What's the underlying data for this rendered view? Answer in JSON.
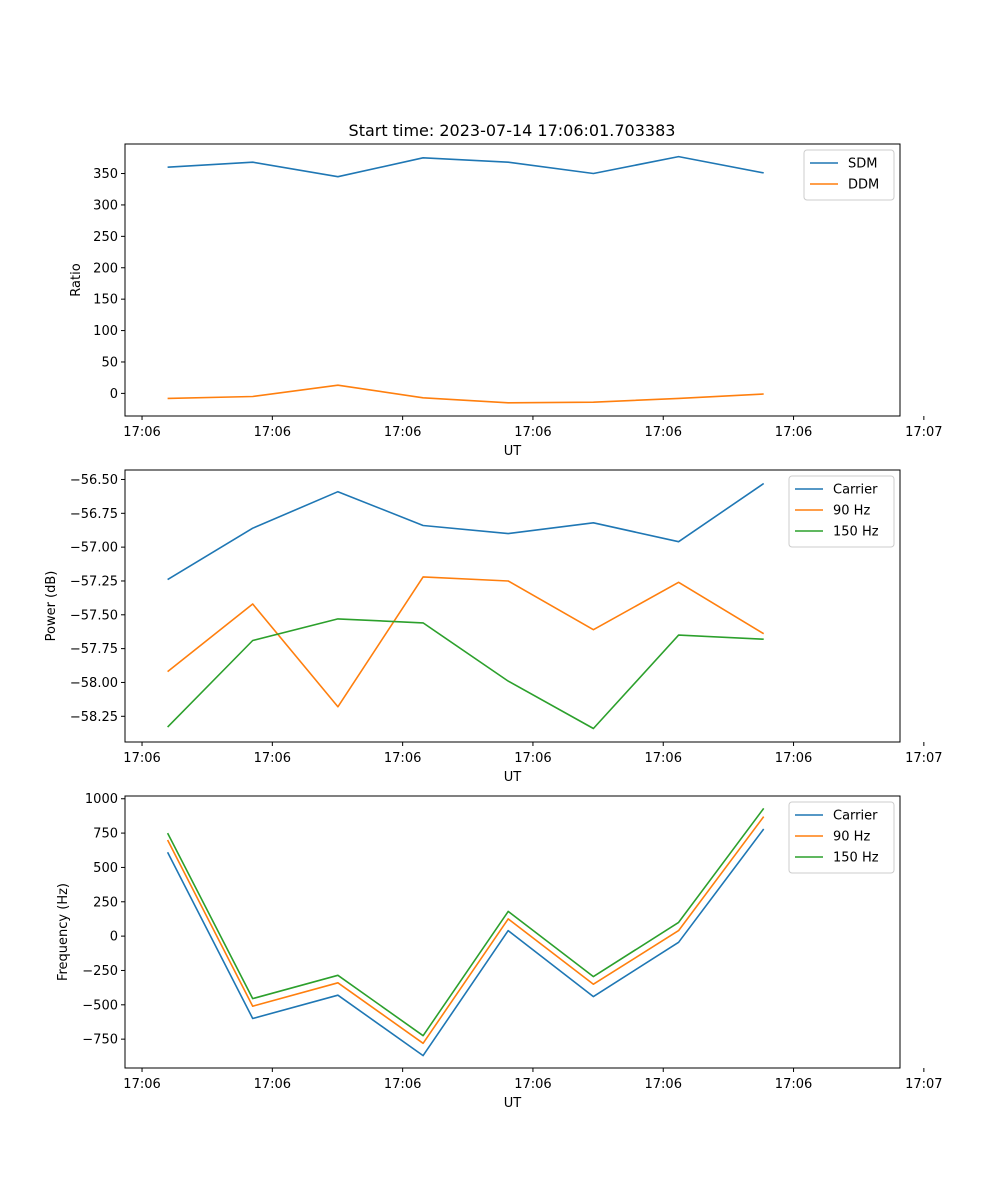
{
  "title": "Start time: 2023-07-14 17:06:01.703383",
  "colors": {
    "blue": "#1f77b4",
    "orange": "#ff7f0e",
    "green": "#2ca02c"
  },
  "chart_data": [
    {
      "type": "line",
      "xlabel": "UT",
      "ylabel": "Ratio",
      "x_ticks": [
        "17:06",
        "17:06",
        "17:06",
        "17:06",
        "17:06",
        "17:06",
        "17:07"
      ],
      "xlim": [
        -0.5,
        8.6
      ],
      "ylim": [
        -36,
        397
      ],
      "y_ticks": [
        0,
        50,
        100,
        150,
        200,
        250,
        300,
        350
      ],
      "y_tick_labels": [
        "0",
        "50",
        "100",
        "150",
        "200",
        "250",
        "300",
        "350"
      ],
      "legend_position": "top-right",
      "series": [
        {
          "name": "SDM",
          "color": "#1f77b4",
          "x": [
            0,
            1,
            2,
            3,
            4,
            5,
            6,
            7
          ],
          "values": [
            360,
            368,
            345,
            375,
            368,
            350,
            377,
            351
          ]
        },
        {
          "name": "DDM",
          "color": "#ff7f0e",
          "x": [
            0,
            1,
            2,
            3,
            4,
            5,
            6,
            7
          ],
          "values": [
            -8,
            -5,
            13,
            -7,
            -15,
            -14,
            -8,
            -1
          ]
        }
      ]
    },
    {
      "type": "line",
      "xlabel": "UT",
      "ylabel": "Power (dB)",
      "x_ticks": [
        "17:06",
        "17:06",
        "17:06",
        "17:06",
        "17:06",
        "17:06",
        "17:07"
      ],
      "xlim": [
        -0.5,
        8.6
      ],
      "ylim": [
        -58.44,
        -56.43
      ],
      "y_ticks": [
        -58.25,
        -58.0,
        -57.75,
        -57.5,
        -57.25,
        -57.0,
        -56.75,
        -56.5
      ],
      "y_tick_labels": [
        "−58.25",
        "−58.00",
        "−57.75",
        "−57.50",
        "−57.25",
        "−57.00",
        "−56.75",
        "−56.50"
      ],
      "legend_position": "top-right",
      "series": [
        {
          "name": "Carrier",
          "color": "#1f77b4",
          "x": [
            0,
            1,
            2,
            3,
            4,
            5,
            6,
            7
          ],
          "values": [
            -57.24,
            -56.86,
            -56.59,
            -56.84,
            -56.9,
            -56.82,
            -56.96,
            -56.53
          ]
        },
        {
          "name": "90 Hz",
          "color": "#ff7f0e",
          "x": [
            0,
            1,
            2,
            3,
            4,
            5,
            6,
            7
          ],
          "values": [
            -57.92,
            -57.42,
            -58.18,
            -57.22,
            -57.25,
            -57.61,
            -57.26,
            -57.64
          ]
        },
        {
          "name": "150 Hz",
          "color": "#2ca02c",
          "x": [
            0,
            1,
            2,
            3,
            4,
            5,
            6,
            7
          ],
          "values": [
            -58.33,
            -57.69,
            -57.53,
            -57.56,
            -57.99,
            -58.34,
            -57.65,
            -57.68
          ]
        }
      ]
    },
    {
      "type": "line",
      "xlabel": "UT",
      "ylabel": "Frequency (Hz)",
      "x_ticks": [
        "17:06",
        "17:06",
        "17:06",
        "17:06",
        "17:06",
        "17:06",
        "17:07"
      ],
      "xlim": [
        -0.5,
        8.6
      ],
      "ylim": [
        -960,
        1020
      ],
      "y_ticks": [
        -750,
        -500,
        -250,
        0,
        250,
        500,
        750,
        1000
      ],
      "y_tick_labels": [
        "−750",
        "−500",
        "−250",
        "0",
        "250",
        "500",
        "750",
        "1000"
      ],
      "legend_position": "top-right",
      "series": [
        {
          "name": "Carrier",
          "color": "#1f77b4",
          "x": [
            0,
            1,
            2,
            3,
            4,
            5,
            6,
            7
          ],
          "values": [
            610,
            -600,
            -430,
            -870,
            40,
            -440,
            -45,
            780
          ]
        },
        {
          "name": "90 Hz",
          "color": "#ff7f0e",
          "x": [
            0,
            1,
            2,
            3,
            4,
            5,
            6,
            7
          ],
          "values": [
            700,
            -510,
            -340,
            -780,
            125,
            -350,
            40,
            870
          ]
        },
        {
          "name": "150 Hz",
          "color": "#2ca02c",
          "x": [
            0,
            1,
            2,
            3,
            4,
            5,
            6,
            7
          ],
          "values": [
            750,
            -455,
            -285,
            -725,
            180,
            -295,
            100,
            930
          ]
        }
      ]
    }
  ]
}
